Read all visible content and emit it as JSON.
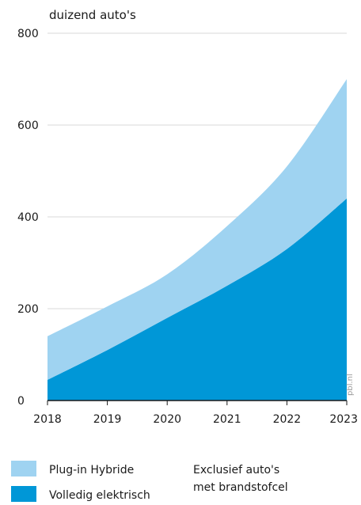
{
  "chart_data": {
    "type": "area",
    "stacked": true,
    "unit_label": "duizend auto's",
    "x": [
      "2018",
      "2019",
      "2020",
      "2021",
      "2022",
      "2023"
    ],
    "ylim": [
      0,
      800
    ],
    "yticks": [
      "0",
      "200",
      "400",
      "600",
      "800"
    ],
    "grid": true,
    "series": [
      {
        "name": "Volledig elektrisch",
        "color": "#0097d7",
        "values": [
          45,
          110,
          180,
          250,
          330,
          440
        ]
      },
      {
        "name": "Plug-in Hybride",
        "color": "#9fd3f1",
        "values": [
          95,
          95,
          95,
          130,
          180,
          260
        ]
      }
    ],
    "note": [
      "Exclusief auto's",
      "met brandstofcel"
    ],
    "source": "pbl.nl",
    "legend_position": "bottom"
  }
}
